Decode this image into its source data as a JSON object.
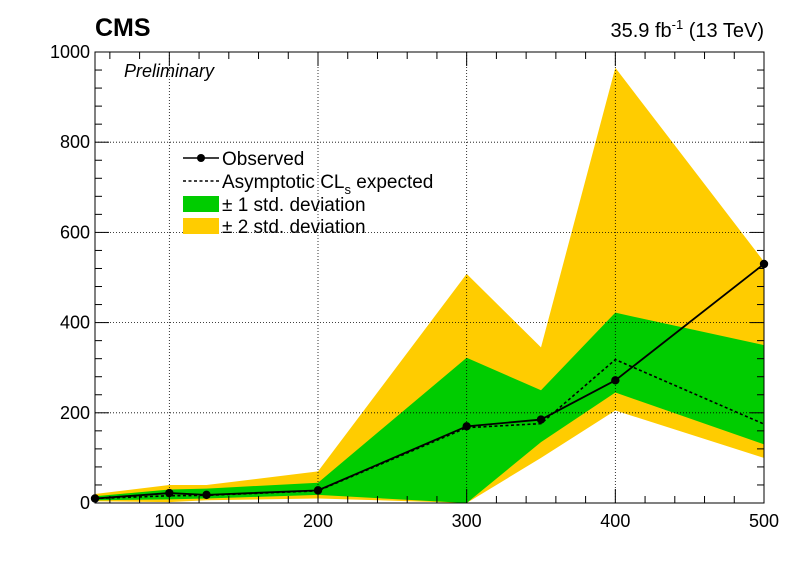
{
  "header": {
    "experiment": "CMS",
    "status": "Preliminary",
    "lumi_value": "35.9 fb",
    "lumi_exp": "-1",
    "energy": " (13 TeV)"
  },
  "legend": {
    "observed": "Observed",
    "expected_main": "Asymptotic CL",
    "expected_sub": "s",
    "expected_tail": " expected",
    "band1": "± 1 std. deviation",
    "band2": "± 2 std. deviation"
  },
  "colors": {
    "band1": "#00cc00",
    "band2": "#ffcc00",
    "observed": "#000000",
    "expected": "#000000",
    "grid": "#000000"
  },
  "chart_data": {
    "type": "line",
    "xlim": [
      50,
      500
    ],
    "ylim": [
      0,
      1000
    ],
    "x_ticks": [
      100,
      200,
      300,
      400,
      500
    ],
    "y_ticks": [
      0,
      200,
      400,
      600,
      800,
      1000
    ],
    "grid": true,
    "legend_position": "upper-left",
    "x": [
      50,
      100,
      125,
      200,
      300,
      350,
      400,
      500
    ],
    "series": [
      {
        "name": "Observed",
        "style": "solid-markers",
        "values": [
          10,
          22,
          18,
          28,
          170,
          185,
          272,
          530
        ]
      },
      {
        "name": "Asymptotic CLs expected",
        "style": "dashed",
        "values": [
          10,
          16,
          17,
          27,
          167,
          176,
          318,
          175
        ]
      }
    ],
    "bands": [
      {
        "name": "± 2 std. deviation",
        "low": [
          4,
          2,
          6,
          10,
          0,
          100,
          205,
          100
        ],
        "high": [
          20,
          40,
          40,
          70,
          508,
          345,
          965,
          535
        ]
      },
      {
        "name": "± 1 std. deviation",
        "low": [
          6,
          8,
          10,
          18,
          0,
          135,
          245,
          130
        ],
        "high": [
          15,
          30,
          32,
          45,
          322,
          250,
          422,
          350
        ]
      }
    ]
  }
}
